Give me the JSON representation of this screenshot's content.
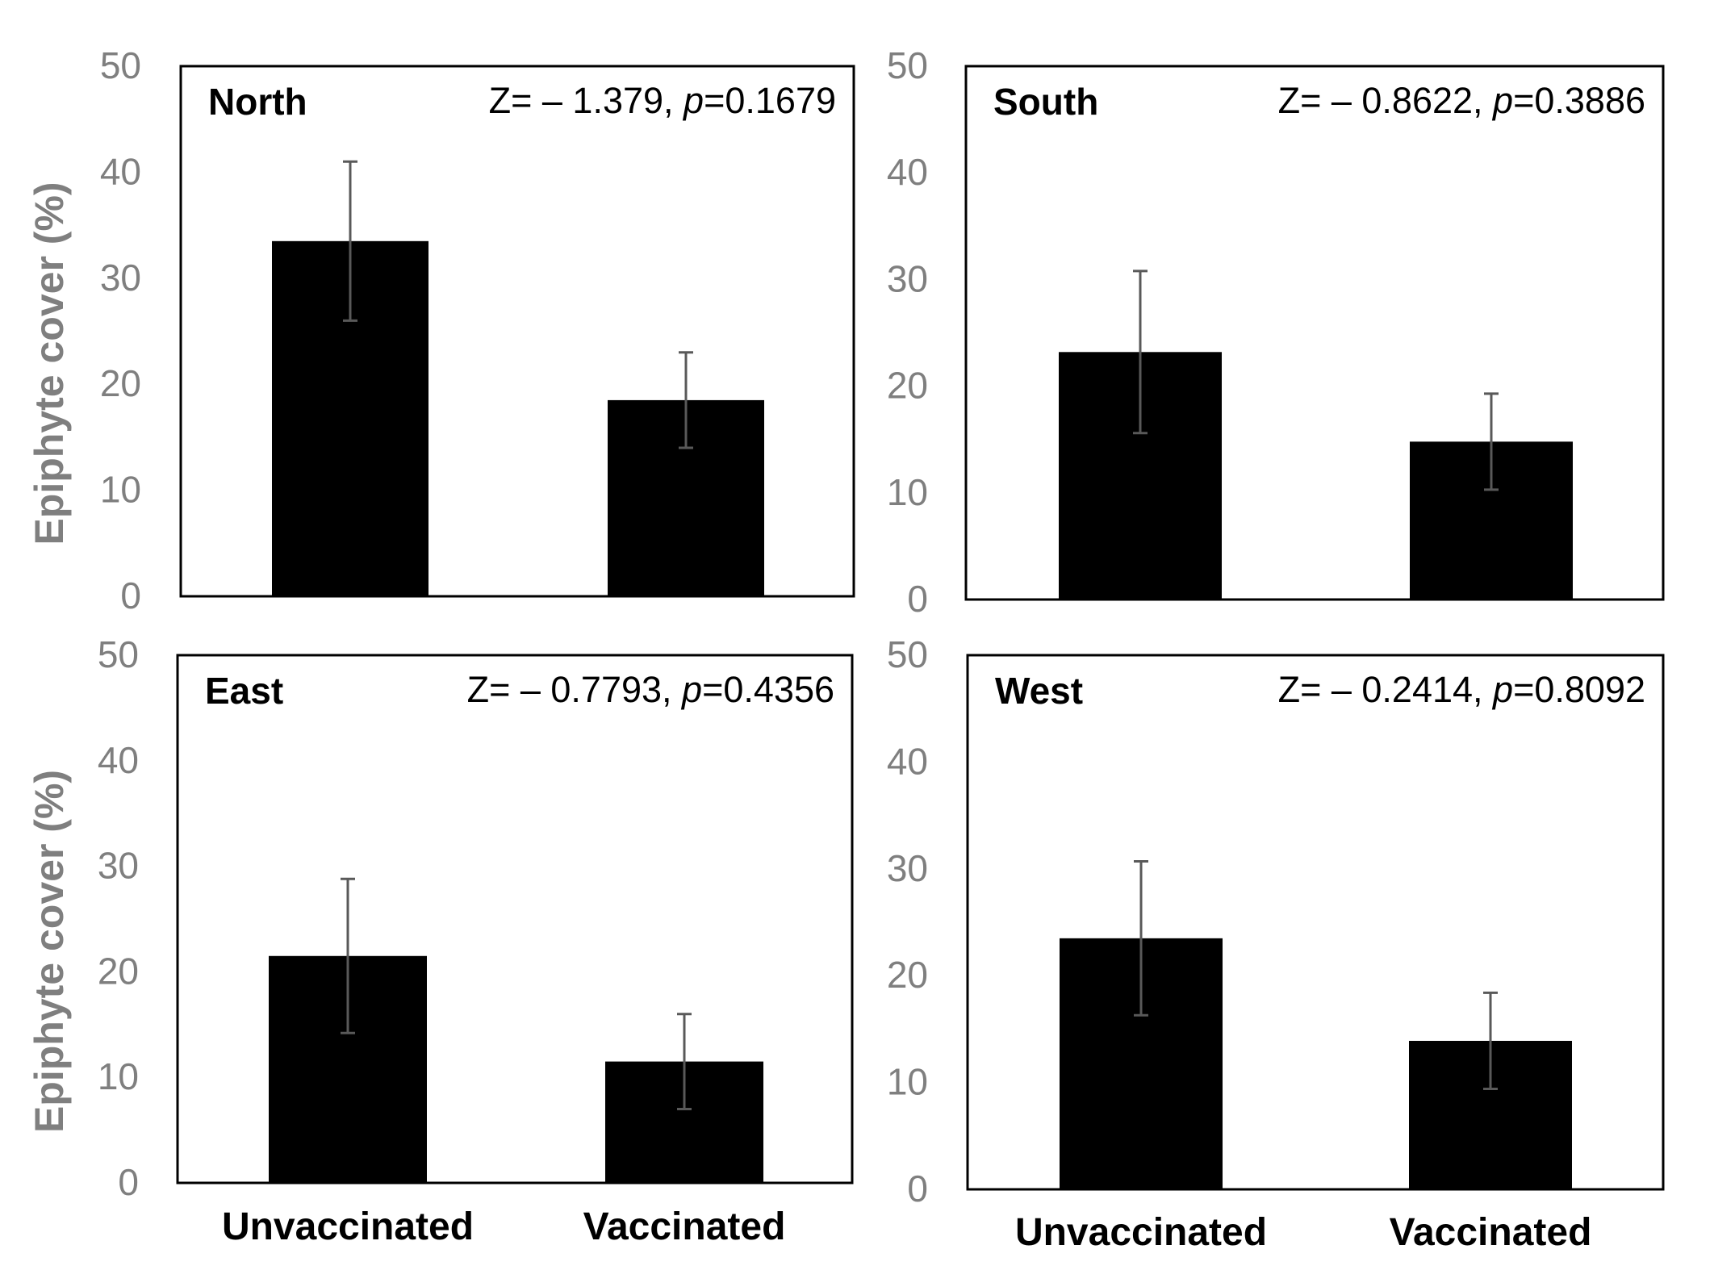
{
  "figure": {
    "bar_color": "#000000",
    "error_bar_color": "#595959",
    "axis_text_color": "#7f7f7f"
  },
  "chart_data": [
    {
      "type": "bar",
      "panel": "top-left",
      "title": "North",
      "stat": {
        "z_label": "Z= – 1.379, ",
        "p_italic": "p",
        "p_value": "=0.1679"
      },
      "ylabel": "Epiphyte cover (%)",
      "xlabel": "",
      "categories": [
        "Unvaccinated",
        "Vaccinated"
      ],
      "show_categories": false,
      "values": [
        33.5,
        18.5
      ],
      "errors": [
        7.5,
        4.5
      ],
      "ylim": [
        0,
        50
      ],
      "yticks": [
        "0",
        "10",
        "20",
        "30",
        "40",
        "50"
      ]
    },
    {
      "type": "bar",
      "panel": "top-right",
      "title": "South",
      "stat": {
        "z_label": "Z= – 0.8622, ",
        "p_italic": "p",
        "p_value": "=0.3886"
      },
      "ylabel": "",
      "xlabel": "",
      "categories": [
        "Unvaccinated",
        "Vaccinated"
      ],
      "show_categories": false,
      "values": [
        23.2,
        14.8
      ],
      "errors": [
        7.6,
        4.5
      ],
      "ylim": [
        0,
        50
      ],
      "yticks": [
        "0",
        "10",
        "20",
        "30",
        "40",
        "50"
      ]
    },
    {
      "type": "bar",
      "panel": "bottom-left",
      "title": "East",
      "stat": {
        "z_label": "Z= – 0.7793, ",
        "p_italic": "p",
        "p_value": "=0.4356"
      },
      "ylabel": "Epiphyte cover (%)",
      "xlabel": "",
      "categories": [
        "Unvaccinated",
        "Vaccinated"
      ],
      "show_categories": true,
      "values": [
        21.5,
        11.5
      ],
      "errors": [
        7.3,
        4.5
      ],
      "ylim": [
        0,
        50
      ],
      "yticks": [
        "0",
        "10",
        "20",
        "30",
        "40",
        "50"
      ]
    },
    {
      "type": "bar",
      "panel": "bottom-right",
      "title": "West",
      "stat": {
        "z_label": "Z= – 0.2414, ",
        "p_italic": "p",
        "p_value": "=0.8092"
      },
      "ylabel": "",
      "xlabel": "",
      "categories": [
        "Unvaccinated",
        "Vaccinated"
      ],
      "show_categories": true,
      "values": [
        23.5,
        13.9
      ],
      "errors": [
        7.2,
        4.5
      ],
      "ylim": [
        0,
        50
      ],
      "yticks": [
        "0",
        "10",
        "20",
        "30",
        "40",
        "50"
      ]
    }
  ]
}
